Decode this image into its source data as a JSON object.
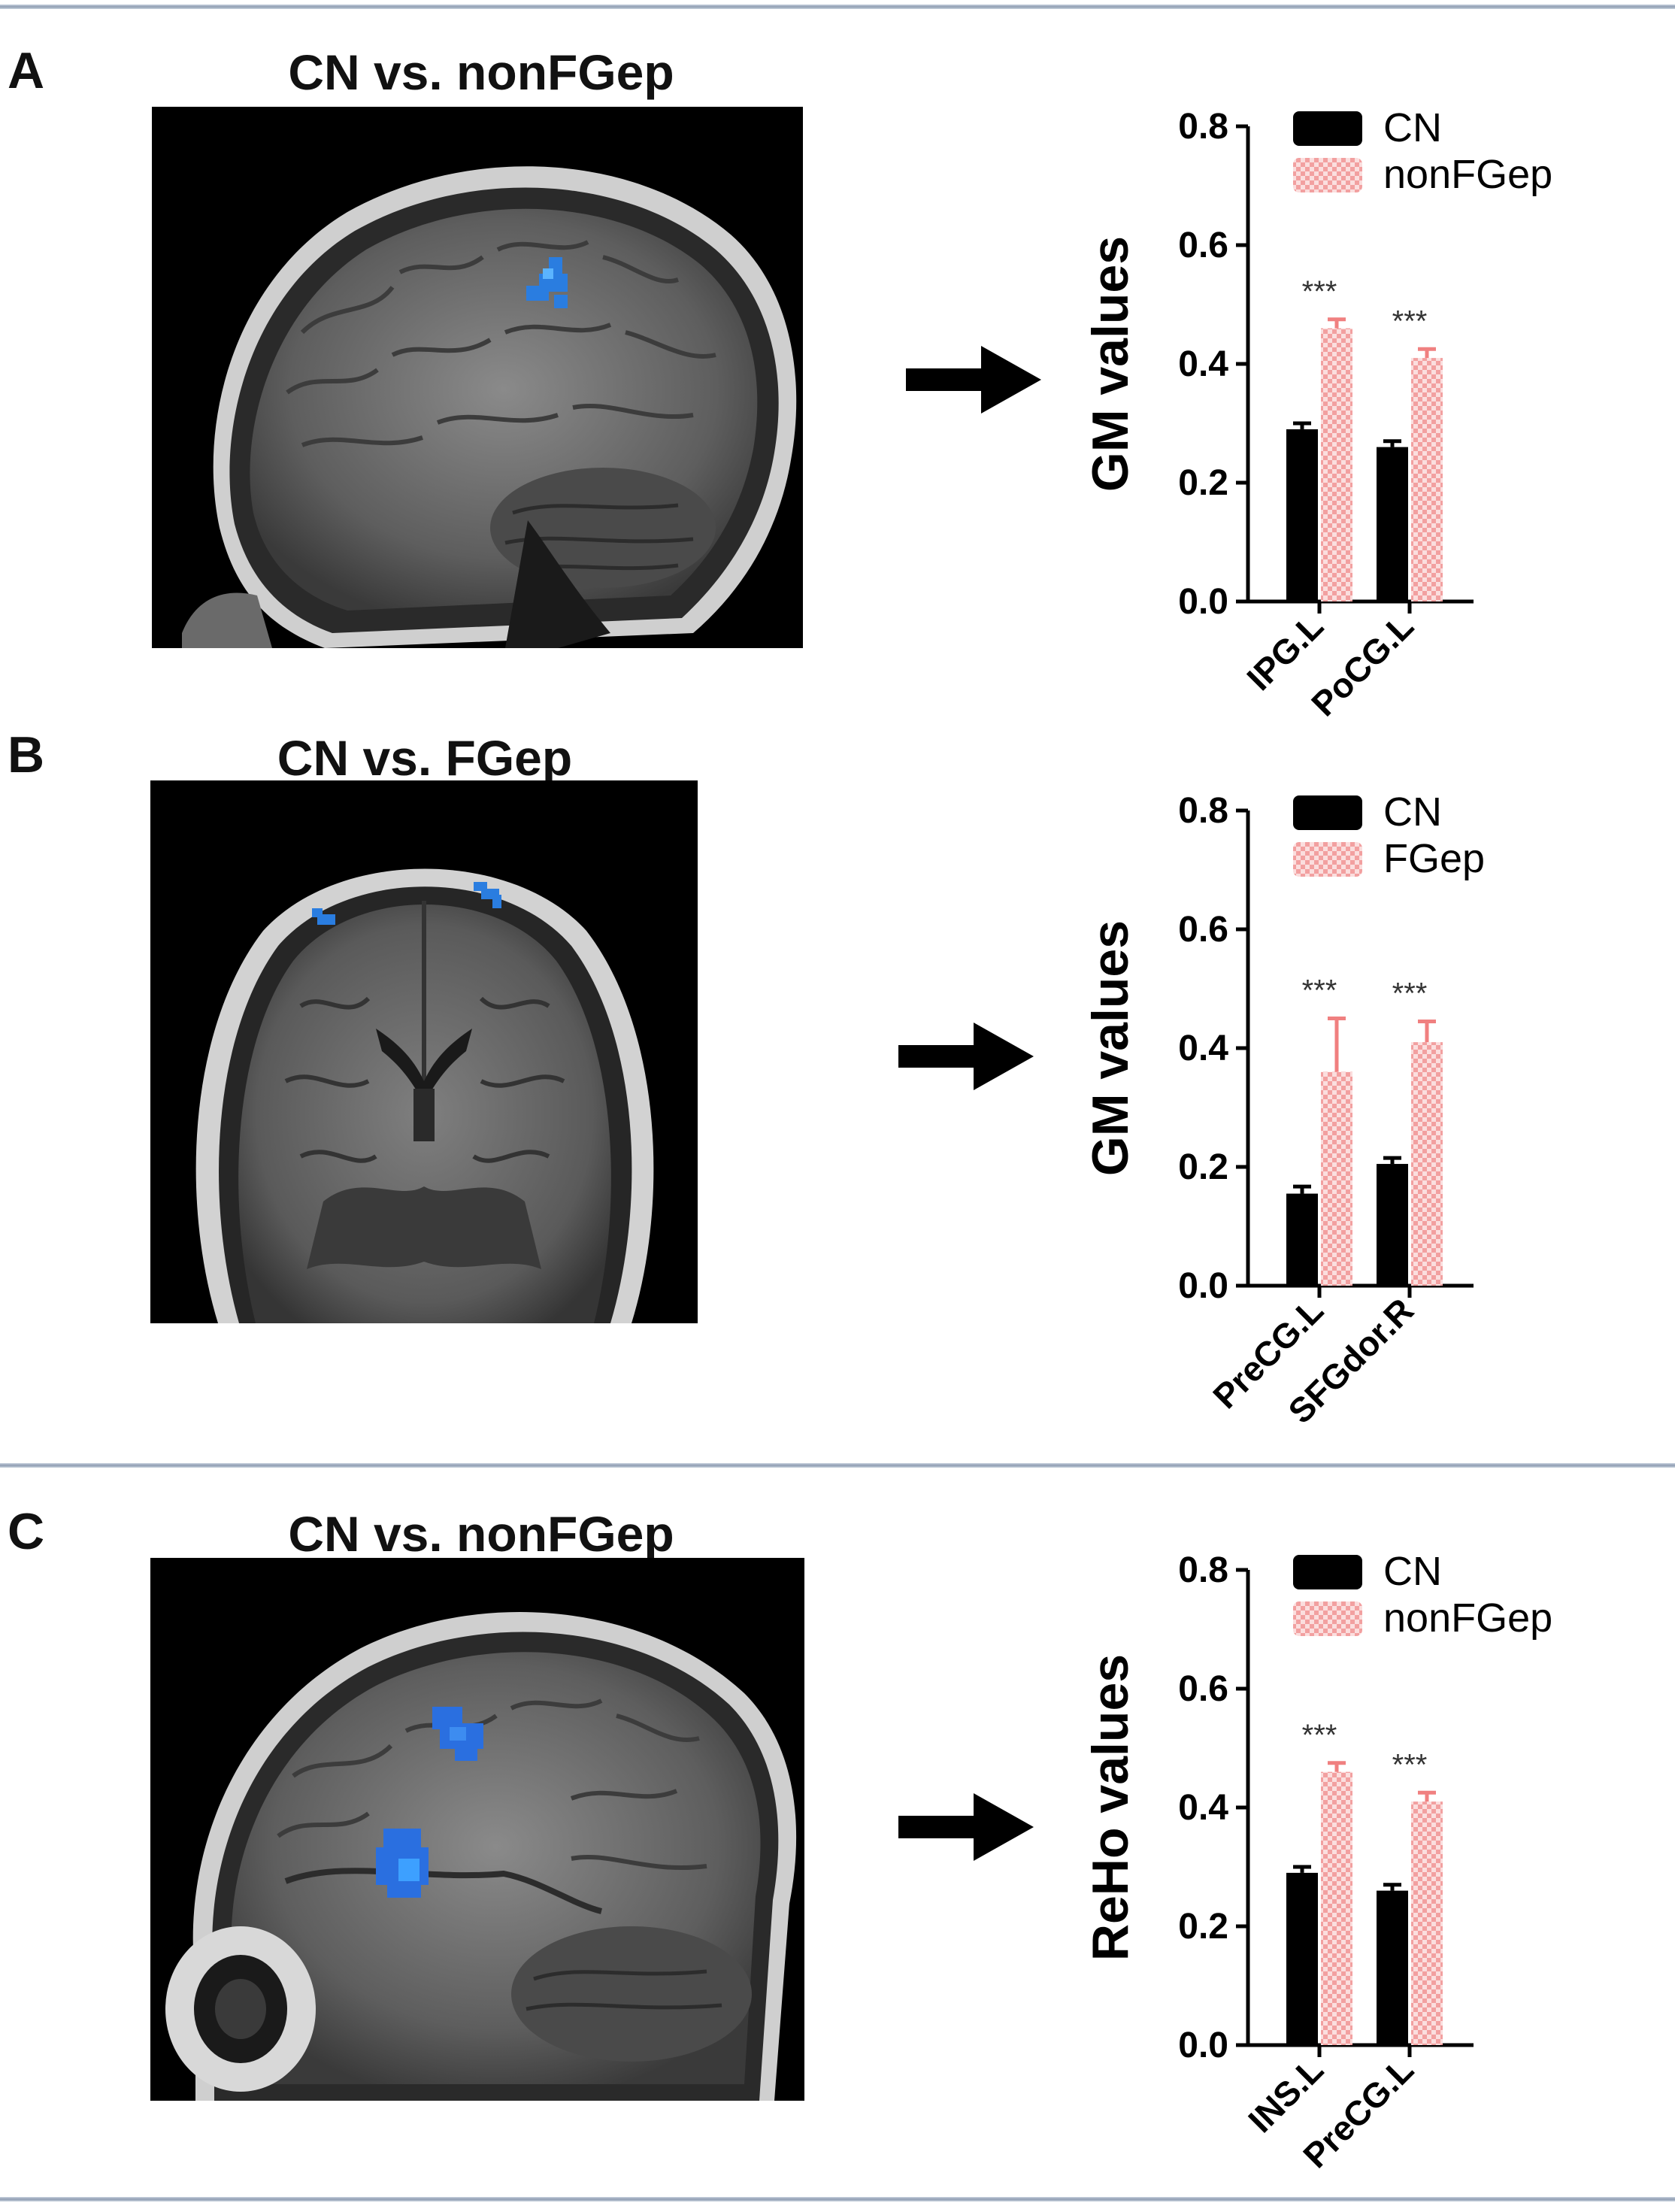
{
  "colors": {
    "cn_bar": "#000000",
    "patient_bar": "#f2a0a0",
    "patient_error": "#f08080",
    "activation": "#2a7de0",
    "separator": "#8f9db2"
  },
  "panels": [
    {
      "letter": "A",
      "title": "CN vs. nonFGep",
      "image_icon": "sagittal-mri-brain",
      "arrow_icon": "right-arrow-icon"
    },
    {
      "letter": "B",
      "title": "CN vs. FGep",
      "image_icon": "coronal-mri-brain",
      "arrow_icon": "right-arrow-icon"
    },
    {
      "letter": "C",
      "title": "CN vs. nonFGep",
      "image_icon": "sagittal-mri-brain",
      "arrow_icon": "right-arrow-icon"
    }
  ],
  "chart_data": [
    {
      "type": "bar",
      "categories": [
        "IPG.L",
        "PoCG.L"
      ],
      "ylabel": "GM values",
      "ylim": [
        0,
        0.8
      ],
      "yticks": [
        "0.0",
        "0.2",
        "0.4",
        "0.6",
        "0.8"
      ],
      "legend_position": "top-right",
      "series": [
        {
          "name": "CN",
          "values": [
            0.29,
            0.26
          ],
          "errors": [
            0.01,
            0.01
          ]
        },
        {
          "name": "nonFGep",
          "values": [
            0.46,
            0.41
          ],
          "errors": [
            0.015,
            0.015
          ]
        }
      ],
      "annotations": [
        "***",
        "***"
      ]
    },
    {
      "type": "bar",
      "categories": [
        "PreCG.L",
        "SFGdor.R"
      ],
      "ylabel": "GM values",
      "ylim": [
        0,
        0.8
      ],
      "yticks": [
        "0.0",
        "0.2",
        "0.4",
        "0.6",
        "0.8"
      ],
      "legend_position": "top-right",
      "series": [
        {
          "name": "CN",
          "values": [
            0.155,
            0.205
          ],
          "errors": [
            0.012,
            0.01
          ]
        },
        {
          "name": "FGep",
          "values": [
            0.36,
            0.41
          ],
          "errors": [
            0.09,
            0.035
          ]
        }
      ],
      "annotations": [
        "***",
        "***"
      ]
    },
    {
      "type": "bar",
      "categories": [
        "INS.L",
        "PreCG.L"
      ],
      "ylabel": "ReHo values",
      "ylim": [
        0,
        0.8
      ],
      "yticks": [
        "0.0",
        "0.2",
        "0.4",
        "0.6",
        "0.8"
      ],
      "legend_position": "top-right",
      "series": [
        {
          "name": "CN",
          "values": [
            0.29,
            0.26
          ],
          "errors": [
            0.01,
            0.01
          ]
        },
        {
          "name": "nonFGep",
          "values": [
            0.46,
            0.41
          ],
          "errors": [
            0.015,
            0.015
          ]
        }
      ],
      "annotations": [
        "***",
        "***"
      ]
    }
  ]
}
